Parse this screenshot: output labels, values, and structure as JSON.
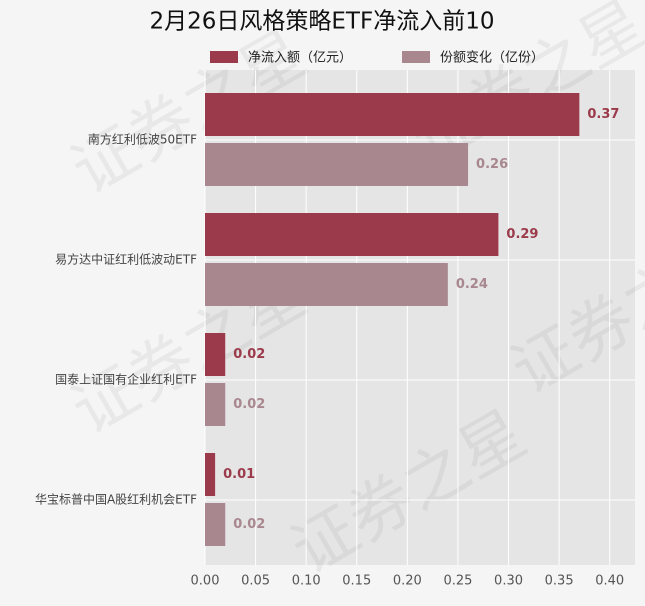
{
  "chart_data": {
    "type": "bar",
    "orientation": "horizontal",
    "title": "2月26日风格策略ETF净流入前10",
    "watermark": "证券之星",
    "categories": [
      "南方红利低波50ETF",
      "易方达中证红利低波动ETF",
      "国泰上证国有企业红利ETF",
      "华宝标普中国A股红利机会ETF"
    ],
    "series": [
      {
        "name": "净流入额（亿元）",
        "color": "#9b3a4a",
        "values": [
          0.37,
          0.29,
          0.02,
          0.01
        ]
      },
      {
        "name": "份额变化（亿份）",
        "color": "#a8878f",
        "values": [
          0.26,
          0.24,
          0.02,
          0.02
        ]
      }
    ],
    "xlim": [
      0,
      0.425
    ],
    "xticks": [
      {
        "value": 0,
        "label": "0.00"
      },
      {
        "value": 0.05,
        "label": "0.05"
      },
      {
        "value": 0.1,
        "label": "0.10"
      },
      {
        "value": 0.15,
        "label": "0.15"
      },
      {
        "value": 0.2,
        "label": "0.20"
      },
      {
        "value": 0.25,
        "label": "0.25"
      },
      {
        "value": 0.3,
        "label": "0.30"
      },
      {
        "value": 0.35,
        "label": "0.35"
      },
      {
        "value": 0.4,
        "label": "0.40"
      }
    ],
    "grid": true
  }
}
